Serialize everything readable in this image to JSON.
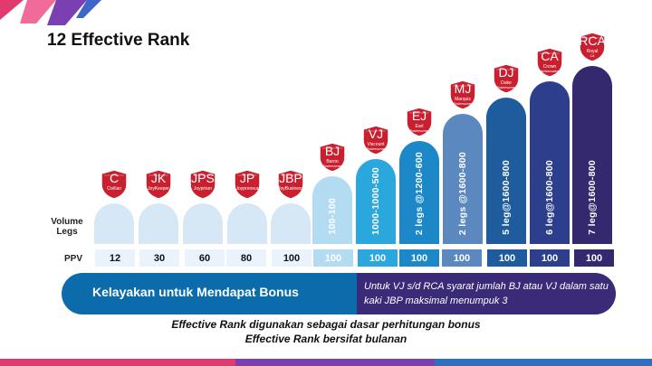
{
  "title": "12 Effective Rank",
  "labels": {
    "volume": "Volume",
    "legs": "Legs",
    "ppv": "PPV"
  },
  "ranks": [
    {
      "abbr": "C",
      "name": "Civilian",
      "sub": "",
      "requirement": "",
      "ppv": "12",
      "color": "#d6e8f6"
    },
    {
      "abbr": "JK",
      "name": "JoyKeeper",
      "sub": "",
      "requirement": "",
      "ppv": "30",
      "color": "#d6e8f6"
    },
    {
      "abbr": "JPS",
      "name": "Joypriser",
      "sub": "",
      "requirement": "",
      "ppv": "60",
      "color": "#d6e8f6"
    },
    {
      "abbr": "JP",
      "name": "Joypreneur",
      "sub": "",
      "requirement": "",
      "ppv": "80",
      "color": "#d6e8f6"
    },
    {
      "abbr": "JBP",
      "name": "JoyBusiness",
      "sub": "",
      "requirement": "",
      "ppv": "100",
      "color": "#d6e8f6"
    },
    {
      "abbr": "BJ",
      "name": "Baron",
      "sub": "Businessman",
      "requirement": "100-100",
      "ppv": "100",
      "color": "#b3dcf3"
    },
    {
      "abbr": "VJ",
      "name": "Viscount",
      "sub": "Businessman",
      "requirement": "1000-1000-500",
      "ppv": "100",
      "color": "#2aa8de"
    },
    {
      "abbr": "EJ",
      "name": "Earl",
      "sub": "Businessman",
      "requirement": "2 legs @1200-600",
      "ppv": "100",
      "color": "#1c88c8"
    },
    {
      "abbr": "MJ",
      "name": "Marquis",
      "sub": "Businessman",
      "requirement": "2 legs @1600-800",
      "ppv": "100",
      "color": "#5b88bf"
    },
    {
      "abbr": "DJ",
      "name": "Duke",
      "sub": "Businessman",
      "requirement": "5 leg@1600-800",
      "ppv": "100",
      "color": "#1e5c9e"
    },
    {
      "abbr": "CA",
      "name": "Crown",
      "sub": "Ambassador",
      "requirement": "6 leg@1600-800",
      "ppv": "100",
      "color": "#2c3e8c"
    },
    {
      "abbr": "RCA",
      "name": "Royal",
      "sub": "CA",
      "requirement": "7 leg@1600-800",
      "ppv": "100",
      "color": "#34286e"
    }
  ],
  "eligibility_label": "Kelayakan untuk Mendapat Bonus",
  "eligibility_note": "Untuk VJ s/d RCA syarat jumlah BJ atau VJ dalam satu kaki JBP  maksimal menumpuk 3",
  "footer_line1": "Effective Rank digunakan sebagai dasar perhitungan bonus",
  "footer_line2": "Effective Rank bersifat bulanan",
  "colors": {
    "badge_red": "#c8202f",
    "pill_blue": "#0b6bab",
    "pill_purple": "#3a2a78"
  }
}
